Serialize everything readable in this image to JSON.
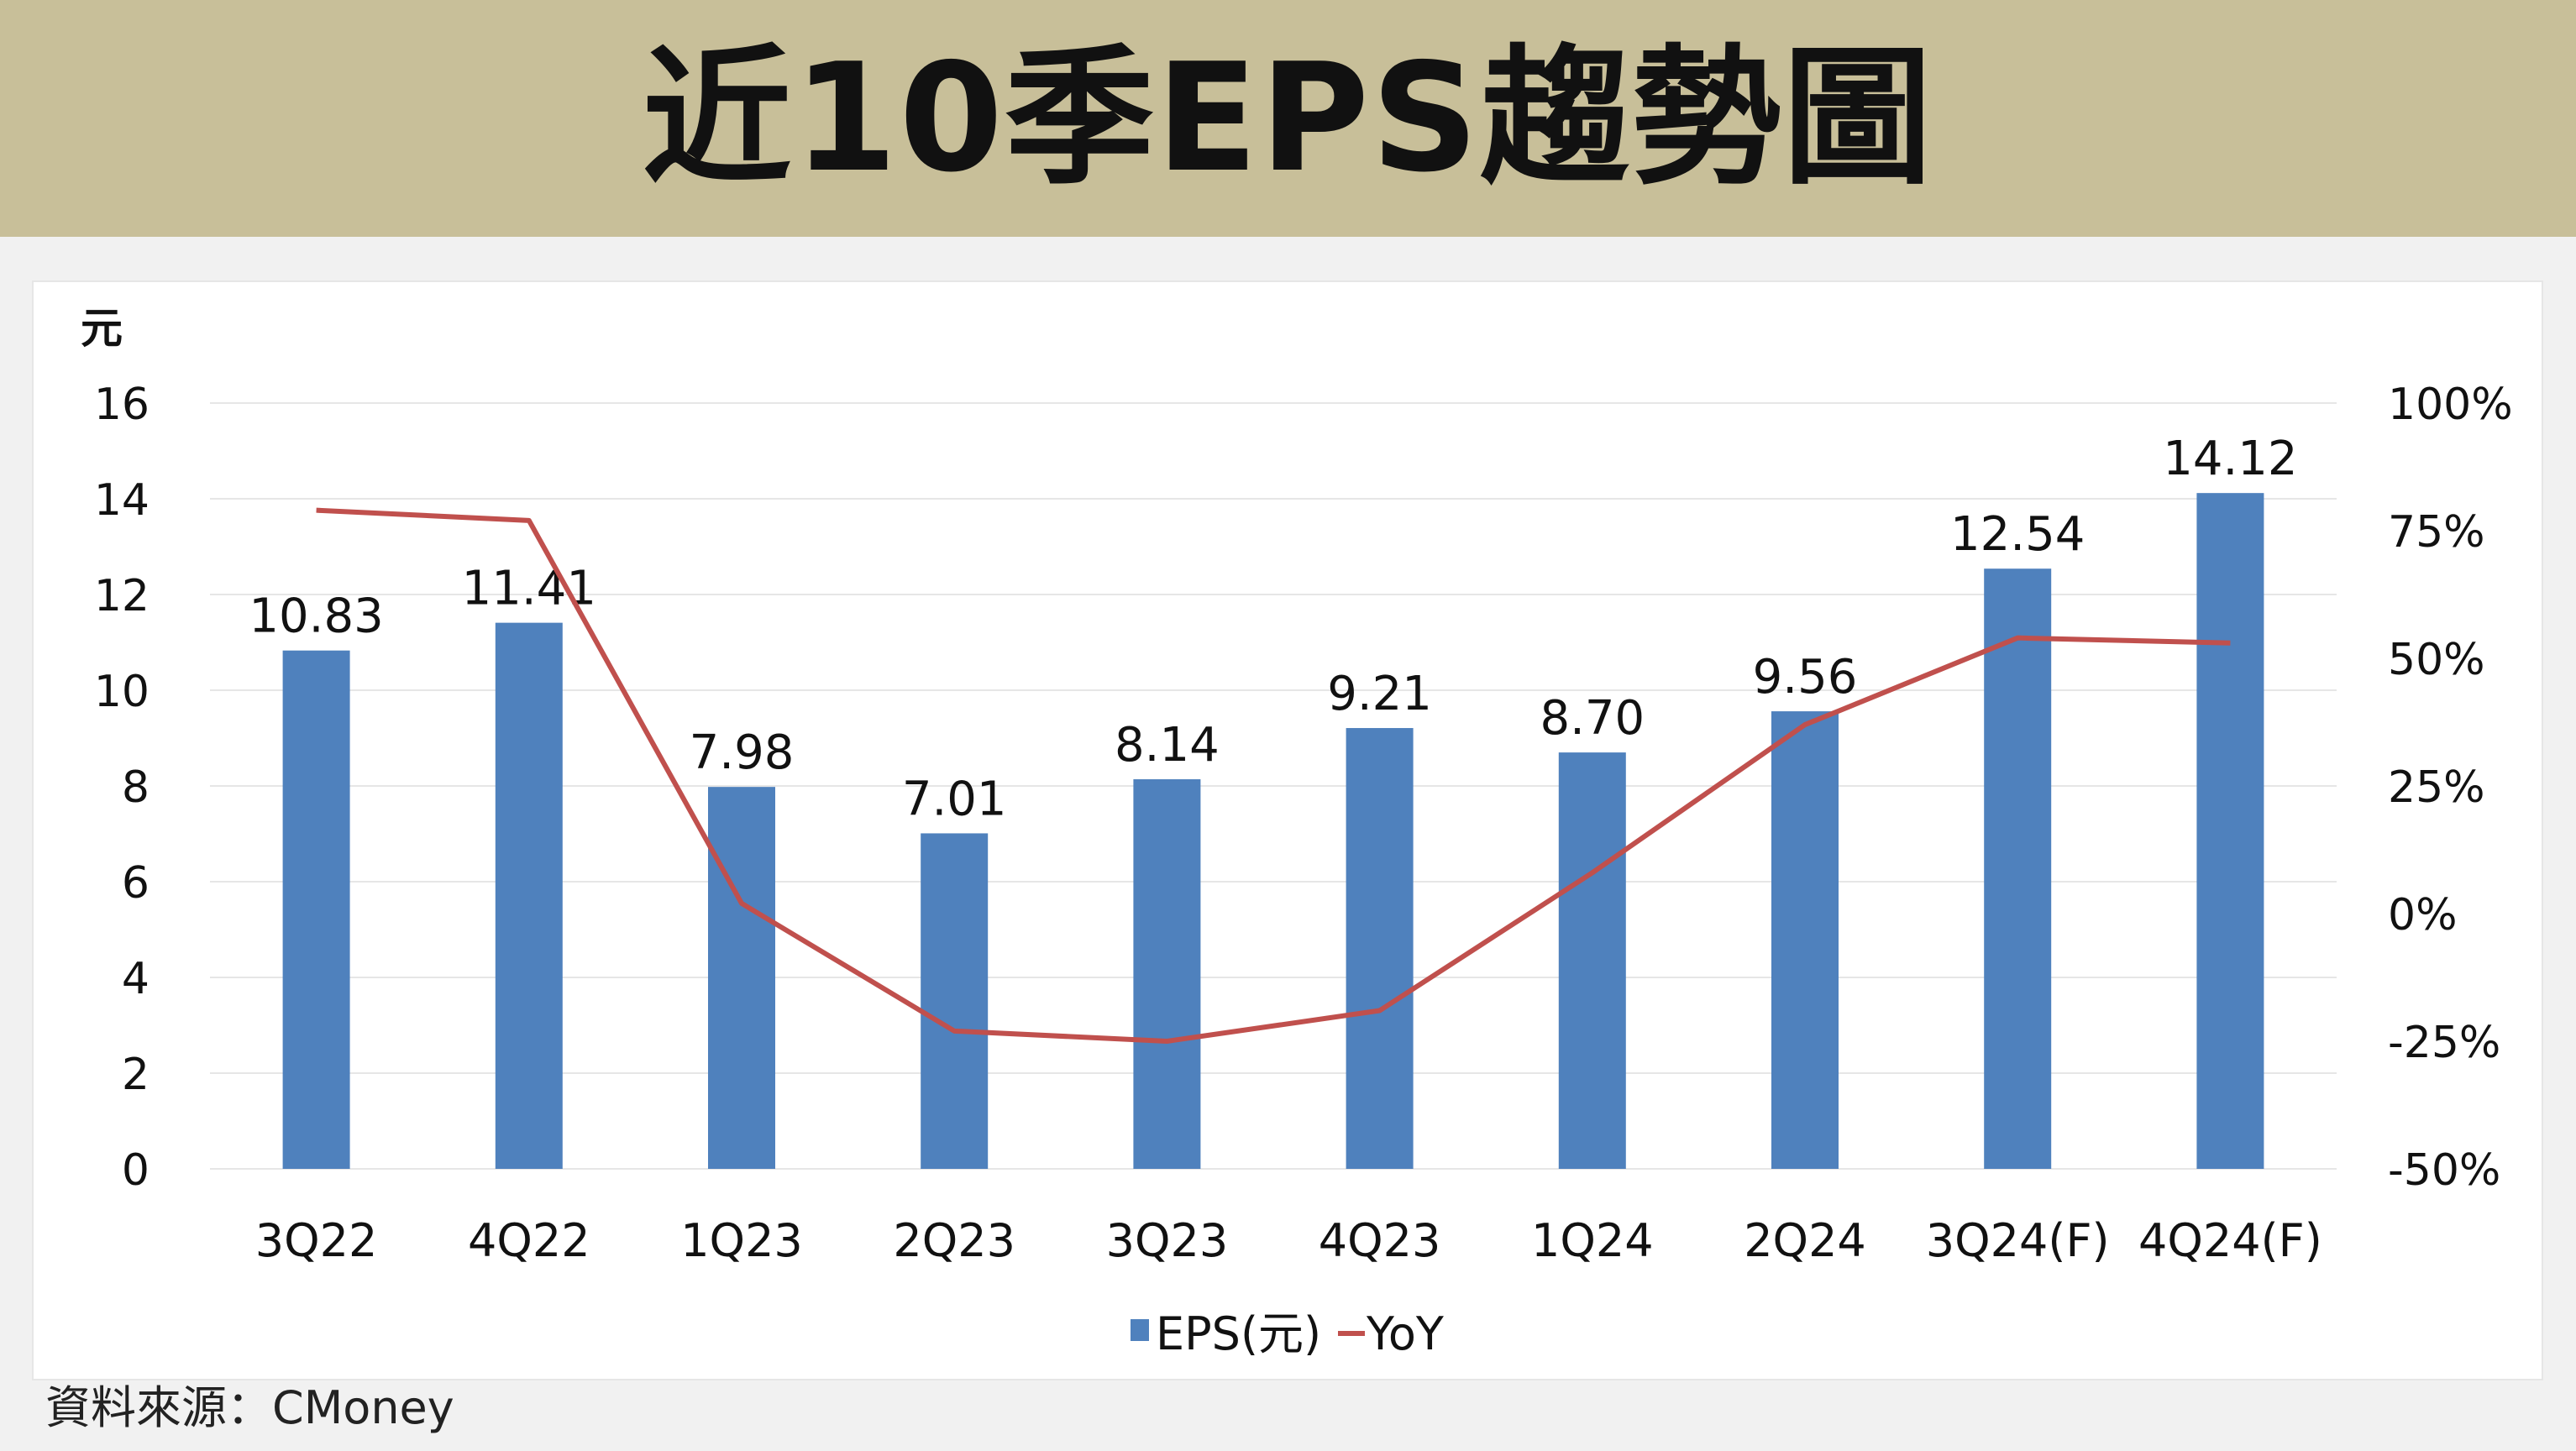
{
  "header": {
    "title": "近10季EPS趨勢圖"
  },
  "source": "資料來源：CMoney",
  "colors": {
    "bar": "#4f81bd",
    "line": "#c0504d",
    "banner": "#c8bf99",
    "grid": "#e6e6e6"
  },
  "chart_data": {
    "type": "bar",
    "title": "",
    "y_left_unit": "元",
    "categories": [
      "3Q22",
      "4Q22",
      "1Q23",
      "2Q23",
      "3Q23",
      "4Q23",
      "1Q24",
      "2Q24",
      "3Q24(F)",
      "4Q24(F)"
    ],
    "series": [
      {
        "name": "EPS(元)",
        "type": "bar",
        "axis": "left",
        "values": [
          10.83,
          11.41,
          7.98,
          7.01,
          8.14,
          9.21,
          8.7,
          9.56,
          12.54,
          14.12
        ],
        "labels": [
          "10.83",
          "11.41",
          "7.98",
          "7.01",
          "8.14",
          "9.21",
          "8.70",
          "9.56",
          "12.54",
          "14.12"
        ]
      },
      {
        "name": "YoY",
        "type": "line",
        "axis": "right",
        "values": [
          79,
          77,
          2,
          -23,
          -25,
          -19,
          8,
          37,
          54,
          53
        ]
      }
    ],
    "y_left": {
      "min": 0,
      "max": 16,
      "ticks": [
        "0",
        "2",
        "4",
        "6",
        "8",
        "10",
        "12",
        "14",
        "16"
      ]
    },
    "y_right": {
      "min": -50,
      "max": 100,
      "ticks": [
        "-50%",
        "-25%",
        "0%",
        "25%",
        "50%",
        "75%",
        "100%"
      ]
    },
    "grid": true,
    "legend": {
      "position": "bottom",
      "items": [
        "EPS(元)",
        "YoY"
      ]
    }
  }
}
